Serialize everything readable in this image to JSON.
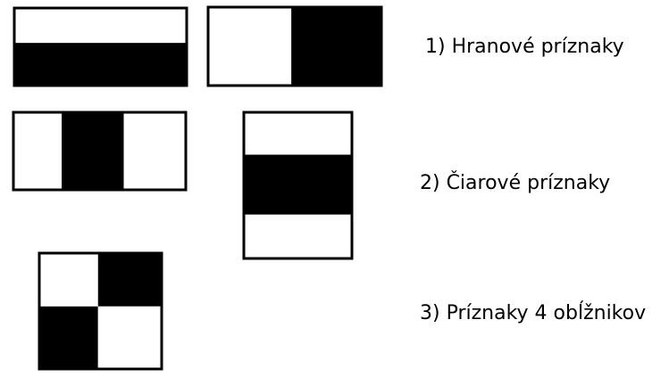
{
  "colors": {
    "dark": "#000000",
    "light": "#ffffff"
  },
  "groups": [
    {
      "caption": "1) Hranové príznaky",
      "features": [
        {
          "name": "edge-feature-horizontal",
          "orientation": "horizontal",
          "pattern": [
            "light",
            "dark"
          ]
        },
        {
          "name": "edge-feature-vertical",
          "orientation": "vertical",
          "pattern": [
            "light",
            "dark"
          ]
        }
      ]
    },
    {
      "caption": "2) Čiarové príznaky",
      "features": [
        {
          "name": "line-feature-vertical",
          "orientation": "vertical",
          "pattern": [
            "light",
            "dark",
            "light"
          ]
        },
        {
          "name": "line-feature-horizontal",
          "orientation": "horizontal",
          "pattern": [
            "light",
            "dark",
            "light"
          ]
        }
      ]
    },
    {
      "caption": "3) Príznaky 4 obĺžnikov",
      "features": [
        {
          "name": "four-rectangle-feature",
          "orientation": "grid",
          "pattern": [
            [
              "light",
              "dark"
            ],
            [
              "dark",
              "light"
            ]
          ]
        }
      ]
    }
  ]
}
